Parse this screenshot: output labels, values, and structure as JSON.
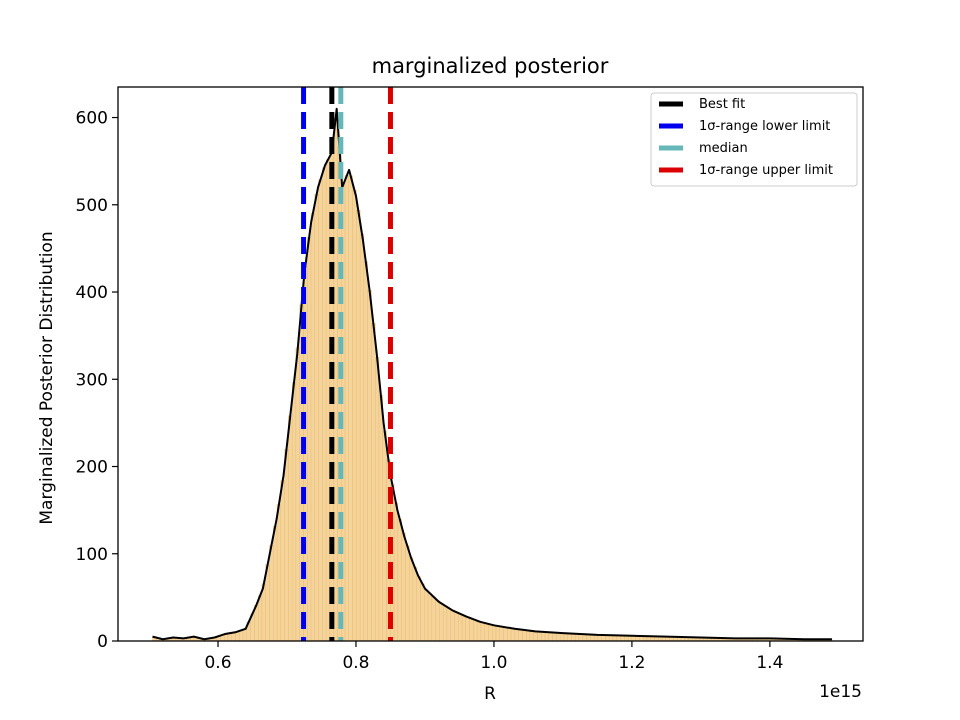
{
  "chart_data": {
    "type": "line",
    "title": "marginalized posterior",
    "xlabel": "R",
    "ylabel": "Marginalized Posterior Distribution",
    "x_offset_label": "1e15",
    "x_scale_factor": 1000000000000000.0,
    "xlim": [
      0.455,
      1.535
    ],
    "ylim": [
      0,
      635
    ],
    "x_ticks": [
      0.6,
      0.8,
      1.0,
      1.2,
      1.4
    ],
    "x_tick_labels": [
      "0.6",
      "0.8",
      "1.0",
      "1.2",
      "1.4"
    ],
    "y_ticks": [
      0,
      100,
      200,
      300,
      400,
      500,
      600
    ],
    "y_tick_labels": [
      "0",
      "100",
      "200",
      "300",
      "400",
      "500",
      "600"
    ],
    "grid": false,
    "legend_position": "top-right",
    "colors": {
      "histogram_fill": "#f5d49b",
      "histogram_edge": "#e8b96a",
      "curve": "#000000",
      "best_fit": "#000000",
      "lower": "#0000ee",
      "median": "#66b8b8",
      "upper": "#dd0000"
    },
    "series": [
      {
        "name": "",
        "x": [
          0.505,
          0.52,
          0.535,
          0.55,
          0.565,
          0.58,
          0.595,
          0.61,
          0.625,
          0.64,
          0.655,
          0.665,
          0.675,
          0.685,
          0.695,
          0.705,
          0.715,
          0.725,
          0.735,
          0.745,
          0.755,
          0.765,
          0.772,
          0.78,
          0.79,
          0.8,
          0.81,
          0.82,
          0.83,
          0.84,
          0.85,
          0.86,
          0.87,
          0.88,
          0.89,
          0.9,
          0.92,
          0.94,
          0.96,
          0.98,
          1.0,
          1.03,
          1.06,
          1.1,
          1.15,
          1.2,
          1.25,
          1.3,
          1.35,
          1.4,
          1.45,
          1.49
        ],
        "y": [
          5,
          2,
          4,
          3,
          5,
          2,
          4,
          8,
          10,
          14,
          40,
          60,
          100,
          140,
          190,
          260,
          330,
          420,
          480,
          520,
          545,
          560,
          610,
          520,
          540,
          510,
          460,
          400,
          330,
          250,
          190,
          150,
          120,
          95,
          75,
          60,
          45,
          35,
          28,
          22,
          18,
          14,
          11,
          9,
          7,
          6,
          5,
          4,
          3,
          3,
          2,
          2
        ]
      }
    ],
    "vlines": [
      {
        "name": "Best fit",
        "x": 0.765
      },
      {
        "name": "1σ-range lower limit",
        "x": 0.724
      },
      {
        "name": "median",
        "x": 0.778
      },
      {
        "name": "1σ-range upper limit",
        "x": 0.85
      }
    ],
    "legend": [
      {
        "label": "Best fit",
        "color": "#000000"
      },
      {
        "label": "1σ-range lower limit",
        "color": "#0000ee"
      },
      {
        "label": "median",
        "color": "#66b8b8"
      },
      {
        "label": "1σ-range upper limit",
        "color": "#dd0000"
      }
    ]
  }
}
